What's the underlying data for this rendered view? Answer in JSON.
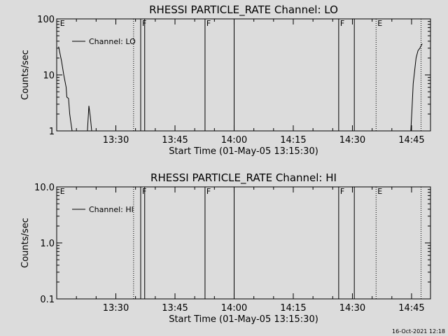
{
  "chart_data": [
    {
      "type": "line",
      "title": "RHESSI PARTICLE_RATE Channel: LO",
      "xlabel": "Start Time (01-May-05 13:15:30)",
      "ylabel": "Counts/sec",
      "yscale": "log",
      "ylim": [
        1,
        100
      ],
      "xlim_minutes": [
        13.25,
        14.83
      ],
      "x_tick_labels": [
        "13:30",
        "13:45",
        "14:00",
        "14:15",
        "14:30",
        "14:45"
      ],
      "x_tick_hours": [
        13.5,
        13.75,
        14.0,
        14.25,
        14.5,
        14.75
      ],
      "y_tick_labels": [
        "1",
        "10",
        "100"
      ],
      "y_tick_values": [
        1,
        10,
        100
      ],
      "legend_label": "Channel: LO",
      "legend_placement": "top-left",
      "series": [
        {
          "name": "Channel: LO",
          "segments": [
            [
              [
                13.258,
                32
              ],
              [
                13.27,
                18
              ],
              [
                13.28,
                10
              ],
              [
                13.29,
                6
              ],
              [
                13.293,
                4
              ],
              [
                13.3,
                3.8
              ],
              [
                13.305,
                2
              ],
              [
                13.31,
                1.4
              ],
              [
                13.315,
                1
              ]
            ],
            [
              [
                13.38,
                1
              ],
              [
                13.386,
                2.8
              ],
              [
                13.392,
                1.8
              ],
              [
                13.398,
                1
              ]
            ],
            [
              [
                14.747,
                1
              ],
              [
                14.752,
                2.5
              ],
              [
                14.757,
                7
              ],
              [
                14.763,
                12
              ],
              [
                14.769,
                20
              ],
              [
                14.777,
                27
              ],
              [
                14.785,
                30
              ],
              [
                14.79,
                33
              ],
              [
                14.795,
                36
              ]
            ]
          ]
        }
      ],
      "flags": [
        {
          "label": "E",
          "hour": 13.258,
          "style": "none"
        },
        {
          "label": "F",
          "hour": 13.605,
          "style": "solid"
        },
        {
          "label": "F",
          "hour": 13.877,
          "style": "solid"
        },
        {
          "label": "F",
          "hour": 14.442,
          "style": "solid"
        },
        {
          "label": "E",
          "hour": 14.6,
          "style": "dotted"
        }
      ],
      "vlines": [
        {
          "hour": 13.575,
          "style": "dotted"
        },
        {
          "hour": 13.622,
          "style": "solid"
        },
        {
          "hour": 14.0,
          "style": "solid"
        },
        {
          "hour": 14.508,
          "style": "solid"
        },
        {
          "hour": 14.79,
          "style": "dotted"
        }
      ]
    },
    {
      "type": "line",
      "title": "RHESSI PARTICLE_RATE Channel: HI",
      "xlabel": "Start Time (01-May-05 13:15:30)",
      "ylabel": "Counts/sec",
      "yscale": "log",
      "ylim": [
        0.1,
        10
      ],
      "xlim_minutes": [
        13.25,
        14.83
      ],
      "x_tick_labels": [
        "13:30",
        "13:45",
        "14:00",
        "14:15",
        "14:30",
        "14:45"
      ],
      "x_tick_hours": [
        13.5,
        13.75,
        14.0,
        14.25,
        14.5,
        14.75
      ],
      "y_tick_labels": [
        "0.1",
        "1.0",
        "10.0"
      ],
      "y_tick_values": [
        0.1,
        1,
        10
      ],
      "legend_label": "Channel: HI",
      "legend_placement": "top-left",
      "series": [
        {
          "name": "Channel: HI",
          "segments": []
        }
      ],
      "flags": [
        {
          "label": "E",
          "hour": 13.258,
          "style": "none"
        },
        {
          "label": "F",
          "hour": 13.605,
          "style": "solid"
        },
        {
          "label": "F",
          "hour": 13.877,
          "style": "solid"
        },
        {
          "label": "F",
          "hour": 14.442,
          "style": "solid"
        },
        {
          "label": "E",
          "hour": 14.6,
          "style": "dotted"
        }
      ],
      "vlines": [
        {
          "hour": 13.575,
          "style": "dotted"
        },
        {
          "hour": 13.622,
          "style": "solid"
        },
        {
          "hour": 14.0,
          "style": "solid"
        },
        {
          "hour": 14.508,
          "style": "solid"
        },
        {
          "hour": 14.79,
          "style": "dotted"
        }
      ]
    }
  ],
  "footer": {
    "timestamp": "16-Oct-2021 12:18"
  },
  "colors": {
    "background": "#dcdcdc",
    "ink": "#000000"
  }
}
